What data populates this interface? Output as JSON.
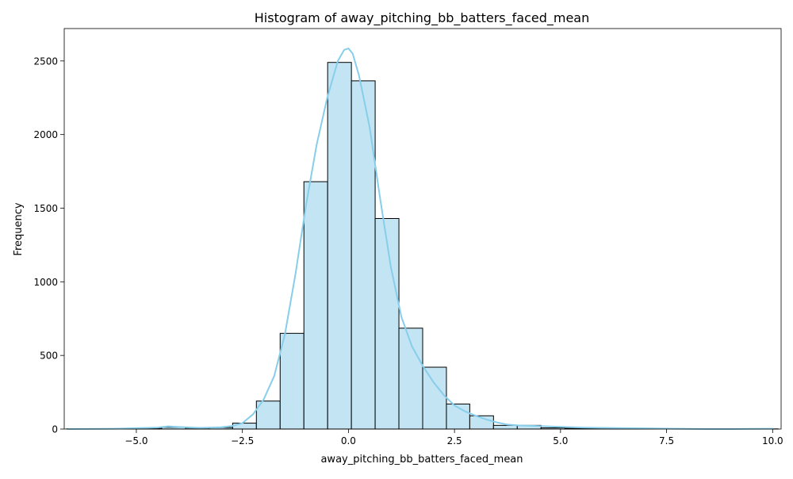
{
  "chart_data": {
    "type": "bar",
    "title": "Histogram of away_pitching_bb_batters_faced_mean",
    "xlabel": "away_pitching_bb_batters_faced_mean",
    "ylabel": "Frequency",
    "xlim": [
      -6.7,
      10.2
    ],
    "ylim": [
      0,
      2720
    ],
    "xticks": [
      {
        "value": -5.0,
        "label": "−5.0"
      },
      {
        "value": -2.5,
        "label": "−2.5"
      },
      {
        "value": 0.0,
        "label": "0.0"
      },
      {
        "value": 2.5,
        "label": "2.5"
      },
      {
        "value": 5.0,
        "label": "5.0"
      },
      {
        "value": 7.5,
        "label": "7.5"
      },
      {
        "value": 10.0,
        "label": "10.0"
      }
    ],
    "yticks": [
      {
        "value": 0,
        "label": "0"
      },
      {
        "value": 500,
        "label": "500"
      },
      {
        "value": 1000,
        "label": "1000"
      },
      {
        "value": 1500,
        "label": "1500"
      },
      {
        "value": 2000,
        "label": "2000"
      },
      {
        "value": 2500,
        "label": "2500"
      }
    ],
    "bins": [
      {
        "x0": -6.64,
        "x1": -6.08,
        "count": 1
      },
      {
        "x0": -6.08,
        "x1": -5.52,
        "count": 2
      },
      {
        "x0": -5.52,
        "x1": -4.96,
        "count": 3
      },
      {
        "x0": -4.96,
        "x1": -4.4,
        "count": 5
      },
      {
        "x0": -4.4,
        "x1": -3.84,
        "count": 12
      },
      {
        "x0": -3.84,
        "x1": -3.28,
        "count": 7
      },
      {
        "x0": -3.28,
        "x1": -2.73,
        "count": 10
      },
      {
        "x0": -2.73,
        "x1": -2.17,
        "count": 40
      },
      {
        "x0": -2.17,
        "x1": -1.61,
        "count": 190
      },
      {
        "x0": -1.61,
        "x1": -1.05,
        "count": 650
      },
      {
        "x0": -1.05,
        "x1": -0.49,
        "count": 1680
      },
      {
        "x0": -0.49,
        "x1": 0.07,
        "count": 2490
      },
      {
        "x0": 0.07,
        "x1": 0.63,
        "count": 2365
      },
      {
        "x0": 0.63,
        "x1": 1.19,
        "count": 1430
      },
      {
        "x0": 1.19,
        "x1": 1.75,
        "count": 685
      },
      {
        "x0": 1.75,
        "x1": 2.31,
        "count": 420
      },
      {
        "x0": 2.31,
        "x1": 2.86,
        "count": 170
      },
      {
        "x0": 2.86,
        "x1": 3.42,
        "count": 90
      },
      {
        "x0": 3.42,
        "x1": 3.98,
        "count": 25
      },
      {
        "x0": 3.98,
        "x1": 4.54,
        "count": 25
      },
      {
        "x0": 4.54,
        "x1": 5.1,
        "count": 8
      },
      {
        "x0": 5.1,
        "x1": 5.66,
        "count": 5
      },
      {
        "x0": 5.66,
        "x1": 6.22,
        "count": 3
      },
      {
        "x0": 6.22,
        "x1": 6.78,
        "count": 3
      },
      {
        "x0": 6.78,
        "x1": 7.34,
        "count": 1
      },
      {
        "x0": 7.34,
        "x1": 7.89,
        "count": 1
      },
      {
        "x0": 7.89,
        "x1": 8.45,
        "count": 0
      },
      {
        "x0": 8.45,
        "x1": 9.01,
        "count": 0
      },
      {
        "x0": 9.01,
        "x1": 9.57,
        "count": 1
      },
      {
        "x0": 9.57,
        "x1": 10.13,
        "count": 1
      }
    ],
    "kde": {
      "x": [
        -6.6,
        -5.5,
        -4.5,
        -4.25,
        -4.0,
        -3.5,
        -3.0,
        -2.75,
        -2.5,
        -2.25,
        -2.0,
        -1.75,
        -1.5,
        -1.25,
        -1.0,
        -0.75,
        -0.5,
        -0.25,
        -0.1,
        0.0,
        0.1,
        0.25,
        0.5,
        0.75,
        1.0,
        1.25,
        1.5,
        1.75,
        2.0,
        2.25,
        2.5,
        2.75,
        3.0,
        3.25,
        3.5,
        3.75,
        4.0,
        4.5,
        5.0,
        5.5,
        6.0,
        6.5,
        7.0,
        7.5,
        8.0,
        8.5,
        9.0,
        9.5,
        10.0
      ],
      "y": [
        0,
        2,
        10,
        18,
        14,
        8,
        12,
        20,
        40,
        100,
        200,
        360,
        640,
        1050,
        1520,
        1930,
        2250,
        2500,
        2575,
        2585,
        2550,
        2400,
        2050,
        1560,
        1100,
        760,
        560,
        430,
        320,
        230,
        160,
        120,
        90,
        65,
        45,
        30,
        25,
        20,
        15,
        10,
        8,
        6,
        5,
        3,
        1,
        0,
        0,
        1,
        2
      ]
    },
    "colors": {
      "bar_fill": "#c3e4f3",
      "bar_edge": "#000000",
      "kde_line": "#87ceeb"
    },
    "grid": false
  }
}
